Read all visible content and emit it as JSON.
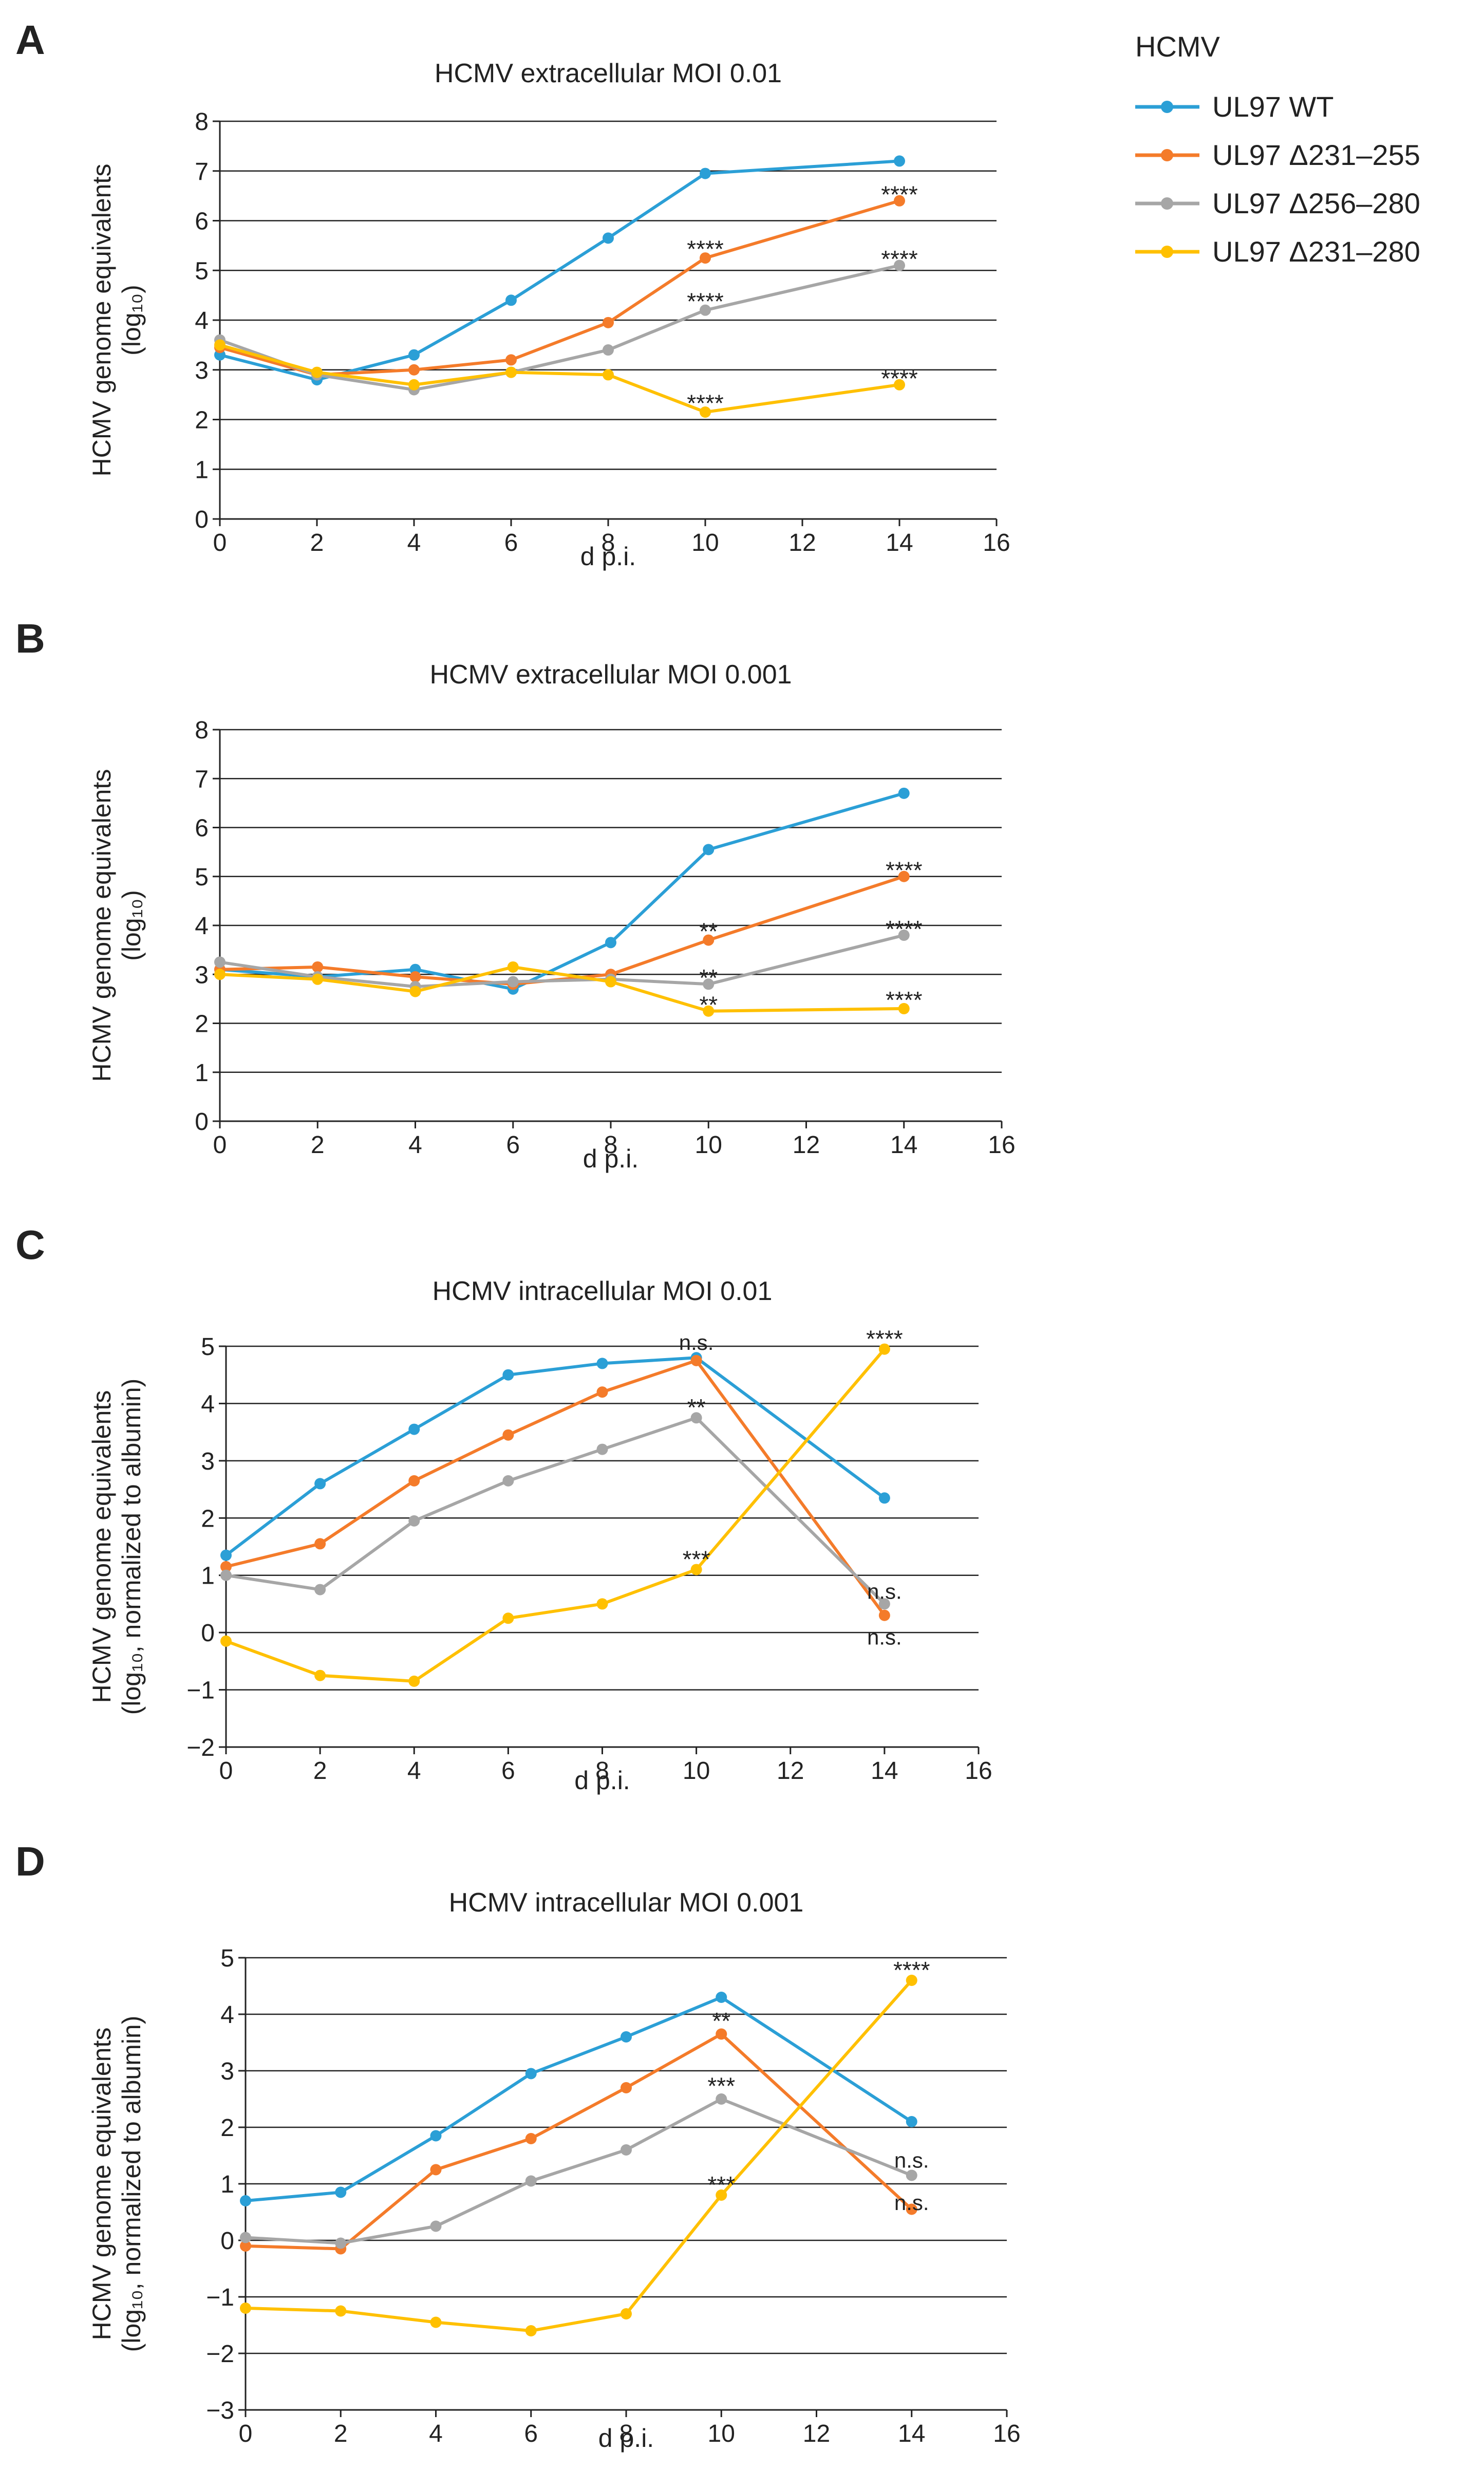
{
  "legend": {
    "title": "HCMV",
    "entries": [
      {
        "name": "UL97 WT",
        "color": "#2b9fd6"
      },
      {
        "name": "UL97 Δ231–255",
        "color": "#f47b2a"
      },
      {
        "name": "UL97 Δ256–280",
        "color": "#a6a6a6"
      },
      {
        "name": "UL97 Δ231–280",
        "color": "#ffc000"
      }
    ]
  },
  "chart_data": [
    {
      "panel": "A",
      "type": "line",
      "title": "HCMV extracellular MOI 0.01",
      "xlabel": "d p.i.",
      "ylabel_lines": [
        "HCMV genome equivalents",
        "(log₁₀)"
      ],
      "xlim": [
        0,
        16
      ],
      "xticks": [
        0,
        2,
        4,
        6,
        8,
        10,
        12,
        14,
        16
      ],
      "ylim": [
        0,
        8
      ],
      "yticks": [
        0,
        1,
        2,
        3,
        4,
        5,
        6,
        7,
        8
      ],
      "grid": true,
      "x": [
        0,
        2,
        4,
        6,
        8,
        10,
        14
      ],
      "series": [
        {
          "name": "UL97 WT",
          "color": "#2b9fd6",
          "values": [
            3.3,
            2.8,
            3.3,
            4.4,
            5.65,
            6.95,
            7.2
          ]
        },
        {
          "name": "UL97 Δ231–255",
          "color": "#f47b2a",
          "values": [
            3.45,
            2.9,
            3.0,
            3.2,
            3.95,
            5.25,
            6.4
          ]
        },
        {
          "name": "UL97 Δ256–280",
          "color": "#a6a6a6",
          "values": [
            3.6,
            2.9,
            2.6,
            2.95,
            3.4,
            4.2,
            5.1
          ]
        },
        {
          "name": "UL97 Δ231–280",
          "color": "#ffc000",
          "values": [
            3.5,
            2.95,
            2.7,
            2.95,
            2.9,
            2.15,
            2.7
          ]
        }
      ],
      "annotations": [
        {
          "text": "****",
          "x": 14,
          "y": 6.55
        },
        {
          "text": "****",
          "x": 10,
          "y": 5.45
        },
        {
          "text": "****",
          "x": 14,
          "y": 5.25
        },
        {
          "text": "****",
          "x": 10,
          "y": 4.4
        },
        {
          "text": "****",
          "x": 10,
          "y": 2.35
        },
        {
          "text": "****",
          "x": 14,
          "y": 2.85
        }
      ]
    },
    {
      "panel": "B",
      "type": "line",
      "title": "HCMV extracellular MOI 0.001",
      "xlabel": "d p.i.",
      "ylabel_lines": [
        "HCMV genome equivalents",
        "(log₁₀)"
      ],
      "xlim": [
        0,
        16
      ],
      "xticks": [
        0,
        2,
        4,
        6,
        8,
        10,
        12,
        14,
        16
      ],
      "ylim": [
        0,
        8
      ],
      "yticks": [
        0,
        1,
        2,
        3,
        4,
        5,
        6,
        7,
        8
      ],
      "grid": true,
      "x": [
        0,
        2,
        4,
        6,
        8,
        10,
        14
      ],
      "series": [
        {
          "name": "UL97 WT",
          "color": "#2b9fd6",
          "values": [
            3.1,
            2.95,
            3.1,
            2.7,
            3.65,
            5.55,
            6.7
          ]
        },
        {
          "name": "UL97 Δ231–255",
          "color": "#f47b2a",
          "values": [
            3.1,
            3.15,
            2.95,
            2.8,
            3.0,
            3.7,
            5.0
          ]
        },
        {
          "name": "UL97 Δ256–280",
          "color": "#a6a6a6",
          "values": [
            3.25,
            2.95,
            2.75,
            2.85,
            2.9,
            2.8,
            3.8
          ]
        },
        {
          "name": "UL97 Δ231–280",
          "color": "#ffc000",
          "values": [
            3.0,
            2.9,
            2.65,
            3.15,
            2.85,
            2.25,
            2.3
          ]
        }
      ],
      "annotations": [
        {
          "text": "****",
          "x": 14,
          "y": 5.15
        },
        {
          "text": "****",
          "x": 14,
          "y": 3.95
        },
        {
          "text": "****",
          "x": 14,
          "y": 2.5
        },
        {
          "text": "**",
          "x": 10,
          "y": 3.9
        },
        {
          "text": "**",
          "x": 10,
          "y": 2.95
        },
        {
          "text": "**",
          "x": 10,
          "y": 2.4
        }
      ]
    },
    {
      "panel": "C",
      "type": "line",
      "title": "HCMV intracellular MOI 0.01",
      "xlabel": "d p.i.",
      "ylabel_lines": [
        "HCMV genome equivalents",
        "(log₁₀, normalized to albumin)"
      ],
      "xlim": [
        0,
        16
      ],
      "xticks": [
        0,
        2,
        4,
        6,
        8,
        10,
        12,
        14,
        16
      ],
      "ylim": [
        -2,
        5
      ],
      "yticks": [
        -2,
        -1,
        0,
        1,
        2,
        3,
        4,
        5
      ],
      "grid": true,
      "x": [
        0,
        2,
        4,
        6,
        8,
        10,
        14
      ],
      "series": [
        {
          "name": "UL97 WT",
          "color": "#2b9fd6",
          "values": [
            1.35,
            2.6,
            3.55,
            4.5,
            4.7,
            4.8,
            2.35
          ]
        },
        {
          "name": "UL97 Δ231–255",
          "color": "#f47b2a",
          "values": [
            1.15,
            1.55,
            2.65,
            3.45,
            4.2,
            4.75,
            0.3
          ]
        },
        {
          "name": "UL97 Δ256–280",
          "color": "#a6a6a6",
          "values": [
            1.0,
            0.75,
            1.95,
            2.65,
            3.2,
            3.75,
            0.5
          ]
        },
        {
          "name": "UL97 Δ231–280",
          "color": "#ffc000",
          "values": [
            -0.15,
            -0.75,
            -0.85,
            0.25,
            0.5,
            1.1,
            4.95
          ]
        }
      ],
      "annotations": [
        {
          "text": "n.s.",
          "x": 10,
          "y": 5.1
        },
        {
          "text": "****",
          "x": 14,
          "y": 5.15
        },
        {
          "text": "**",
          "x": 10,
          "y": 3.95
        },
        {
          "text": "***",
          "x": 10,
          "y": 1.3
        },
        {
          "text": "n.s.",
          "x": 14,
          "y": 0.75
        },
        {
          "text": "n.s.",
          "x": 14,
          "y": -0.05
        }
      ]
    },
    {
      "panel": "D",
      "type": "line",
      "title": "HCMV intracellular MOI 0.001",
      "xlabel": "d p.i.",
      "ylabel_lines": [
        "HCMV genome equivalents",
        "(log₁₀, normalized to albumin)"
      ],
      "xlim": [
        0,
        16
      ],
      "xticks": [
        0,
        2,
        4,
        6,
        8,
        10,
        12,
        14,
        16
      ],
      "ylim": [
        -3,
        5
      ],
      "yticks": [
        -3,
        -2,
        -1,
        0,
        1,
        2,
        3,
        4,
        5
      ],
      "grid": true,
      "x": [
        0,
        2,
        4,
        6,
        8,
        10,
        14
      ],
      "series": [
        {
          "name": "UL97 WT",
          "color": "#2b9fd6",
          "values": [
            0.7,
            0.85,
            1.85,
            2.95,
            3.6,
            4.3,
            2.1
          ]
        },
        {
          "name": "UL97 Δ231–255",
          "color": "#f47b2a",
          "values": [
            -0.1,
            -0.15,
            1.25,
            1.8,
            2.7,
            3.65,
            0.55
          ]
        },
        {
          "name": "UL97 Δ256–280",
          "color": "#a6a6a6",
          "values": [
            0.05,
            -0.05,
            0.25,
            1.05,
            1.6,
            2.5,
            1.15
          ]
        },
        {
          "name": "UL97 Δ231–280",
          "color": "#ffc000",
          "values": [
            -1.2,
            -1.25,
            -1.45,
            -1.6,
            -1.3,
            0.8,
            4.6
          ]
        }
      ],
      "annotations": [
        {
          "text": "****",
          "x": 14,
          "y": 4.8
        },
        {
          "text": "**",
          "x": 10,
          "y": 3.9
        },
        {
          "text": "***",
          "x": 10,
          "y": 2.75
        },
        {
          "text": "***",
          "x": 10,
          "y": 1.0
        },
        {
          "text": "n.s.",
          "x": 14,
          "y": 1.45
        },
        {
          "text": "n.s.",
          "x": 14,
          "y": 0.7
        }
      ]
    }
  ]
}
